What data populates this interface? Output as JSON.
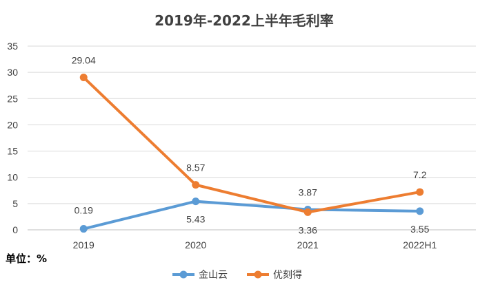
{
  "chart_data": {
    "type": "line",
    "title": "2019年-2022上半年毛利率",
    "categories": [
      "2019",
      "2020",
      "2021",
      "2022H1"
    ],
    "ylim": [
      0,
      35
    ],
    "yticks": [
      0,
      5,
      10,
      15,
      20,
      25,
      30,
      35
    ],
    "grid": true,
    "legend_position": "bottom",
    "unit_label": "单位：%",
    "series": [
      {
        "name": "金山云",
        "values": [
          0.19,
          5.43,
          3.87,
          3.55
        ],
        "labels": [
          "0.19",
          "5.43",
          "3.87",
          "3.55"
        ],
        "color": "#5B9BD5"
      },
      {
        "name": "优刻得",
        "values": [
          29.04,
          8.57,
          3.36,
          7.2
        ],
        "labels": [
          "29.04",
          "8.57",
          "3.36",
          "7.2"
        ],
        "color": "#ED7D31"
      }
    ]
  }
}
